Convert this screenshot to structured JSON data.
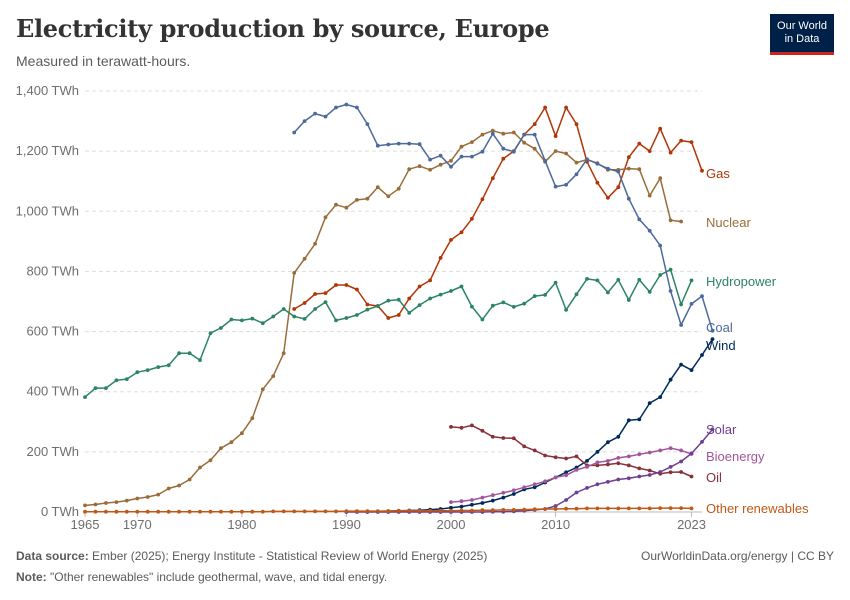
{
  "header": {
    "title": "Electricity production by source, Europe",
    "subtitle": "Measured in terawatt-hours.",
    "logo_line1": "Our World",
    "logo_line2": "in Data"
  },
  "footer": {
    "source_label": "Data source:",
    "source_text": "Ember (2025); Energy Institute - Statistical Review of World Energy (2025)",
    "note_label": "Note:",
    "note_text": "\"Other renewables\" include geothermal, wave, and tidal energy.",
    "credit": "OurWorldinData.org/energy | CC BY"
  },
  "chart_data": {
    "type": "line",
    "title": "Electricity production by source, Europe",
    "subtitle": "Measured in terawatt-hours.",
    "unit": "TWh",
    "xlim": [
      1965,
      2024
    ],
    "ylim": [
      0,
      1400
    ],
    "x_ticks": [
      1965,
      1970,
      1980,
      1990,
      2000,
      2010,
      2023
    ],
    "y_ticks": [
      0,
      200,
      400,
      600,
      800,
      1000,
      1200,
      1400
    ],
    "y_tick_labels": [
      "0 TWh",
      "200 TWh",
      "400 TWh",
      "600 TWh",
      "800 TWh",
      "1,000 TWh",
      "1,200 TWh",
      "1,400 TWh"
    ],
    "grid": "horizontal dashed",
    "legend": "line-end labels",
    "series": [
      {
        "name": "Gas",
        "color": "#b13507",
        "x_start": 1985,
        "values": [
          675,
          695,
          725,
          728,
          755,
          755,
          740,
          690,
          685,
          645,
          655,
          710,
          750,
          770,
          845,
          905,
          930,
          975,
          1040,
          1110,
          1175,
          1200,
          1255,
          1290,
          1345,
          1250,
          1345,
          1290,
          1165,
          1095,
          1045,
          1080,
          1180,
          1225,
          1200,
          1275,
          1195,
          1235,
          1230,
          1135
        ]
      },
      {
        "name": "Nuclear",
        "color": "#996d39",
        "x_start": 1965,
        "values": [
          22,
          25,
          30,
          33,
          38,
          45,
          50,
          58,
          78,
          88,
          108,
          148,
          172,
          212,
          232,
          262,
          312,
          408,
          452,
          528,
          795,
          842,
          892,
          980,
          1022,
          1012,
          1038,
          1042,
          1080,
          1050,
          1075,
          1140,
          1150,
          1138,
          1155,
          1168,
          1215,
          1230,
          1255,
          1268,
          1258,
          1262,
          1228,
          1208,
          1165,
          1200,
          1192,
          1162,
          1172,
          1160,
          1138,
          1138,
          1142,
          1140,
          1052,
          1110,
          970,
          966
        ]
      },
      {
        "name": "Hydropower",
        "color": "#2c8465",
        "x_start": 1965,
        "values": [
          382,
          412,
          412,
          438,
          442,
          465,
          472,
          482,
          488,
          528,
          528,
          505,
          595,
          612,
          640,
          637,
          643,
          628,
          650,
          675,
          650,
          642,
          675,
          698,
          637,
          645,
          655,
          673,
          685,
          703,
          706,
          662,
          688,
          710,
          723,
          735,
          750,
          683,
          640,
          686,
          697,
          682,
          693,
          718,
          722,
          763,
          672,
          724,
          775,
          770,
          730,
          772,
          705,
          772,
          732,
          788,
          806,
          690,
          770
        ]
      },
      {
        "name": "Coal",
        "color": "#4c6a9c",
        "x_start": 1985,
        "values": [
          1262,
          1300,
          1325,
          1315,
          1345,
          1355,
          1345,
          1290,
          1218,
          1222,
          1225,
          1225,
          1223,
          1172,
          1185,
          1148,
          1182,
          1182,
          1198,
          1258,
          1208,
          1198,
          1255,
          1255,
          1168,
          1082,
          1088,
          1123,
          1173,
          1158,
          1142,
          1132,
          1042,
          973,
          935,
          886,
          735,
          622,
          692,
          718,
          603
        ]
      },
      {
        "name": "Wind",
        "color": "#00295b",
        "x_start": 1990,
        "values": [
          1,
          1,
          1,
          2,
          3,
          4,
          5,
          6,
          8,
          10,
          14,
          18,
          24,
          30,
          38,
          48,
          60,
          75,
          82,
          98,
          115,
          132,
          148,
          170,
          200,
          232,
          250,
          305,
          308,
          362,
          382,
          440,
          490,
          472,
          522,
          575
        ]
      },
      {
        "name": "Oil",
        "color": "#883039",
        "x_start": 2000,
        "values": [
          283,
          280,
          288,
          270,
          250,
          246,
          245,
          218,
          205,
          188,
          182,
          178,
          185,
          155,
          155,
          158,
          162,
          155,
          145,
          138,
          127,
          132,
          133,
          118
        ]
      },
      {
        "name": "Bioenergy",
        "color": "#a2559c",
        "x_start": 2000,
        "values": [
          33,
          36,
          40,
          48,
          56,
          64,
          72,
          82,
          92,
          102,
          115,
          122,
          140,
          150,
          165,
          170,
          180,
          185,
          192,
          198,
          205,
          212,
          205,
          193
        ]
      },
      {
        "name": "Solar",
        "color": "#6d3e91",
        "x_start": 1990,
        "values": [
          0,
          0,
          0,
          0,
          0,
          0,
          0,
          0,
          0,
          0,
          0,
          0,
          0,
          0,
          1,
          1,
          2,
          4,
          7,
          10,
          20,
          40,
          65,
          80,
          92,
          100,
          108,
          112,
          118,
          123,
          133,
          150,
          168,
          195,
          233,
          275
        ]
      },
      {
        "name": "Other renewables",
        "color": "#c05917",
        "x_start": 1965,
        "values": [
          1,
          1,
          1,
          1,
          1,
          1,
          1,
          1,
          1,
          1,
          1,
          1,
          1,
          1,
          1,
          1,
          1,
          1,
          2,
          2,
          2,
          2,
          2,
          2,
          2,
          3,
          3,
          3,
          3,
          3,
          4,
          4,
          4,
          4,
          4,
          4,
          5,
          5,
          6,
          6,
          7,
          7,
          8,
          9,
          10,
          10,
          11,
          11,
          12,
          12,
          12,
          12,
          12,
          12,
          12,
          13,
          13,
          13,
          12
        ]
      }
    ]
  }
}
